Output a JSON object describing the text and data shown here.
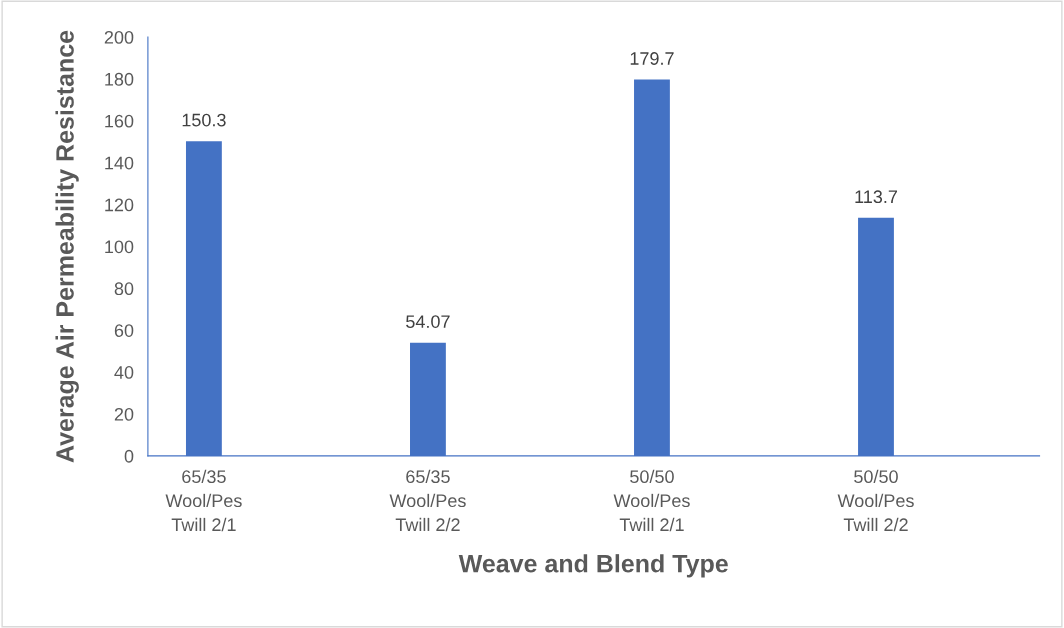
{
  "chart_data": {
    "type": "bar",
    "xlabel": "Weave and Blend Type",
    "ylabel": "Average Air Permeability Resistance",
    "categories": [
      "65/35\nWool/Pes\nTwill 2/1",
      "65/35\nWool/Pes\nTwill 2/2",
      "50/50\nWool/Pes\nTwill 2/1",
      "50/50\nWool/Pes\nTwill 2/2"
    ],
    "values": [
      150.3,
      54.07,
      179.7,
      113.7
    ],
    "color": "#4472c4",
    "data_labels": true,
    "ylim": [
      0,
      200
    ],
    "yticks": [
      0,
      20,
      40,
      60,
      80,
      100,
      120,
      140,
      160,
      180,
      200
    ],
    "grid": false
  }
}
